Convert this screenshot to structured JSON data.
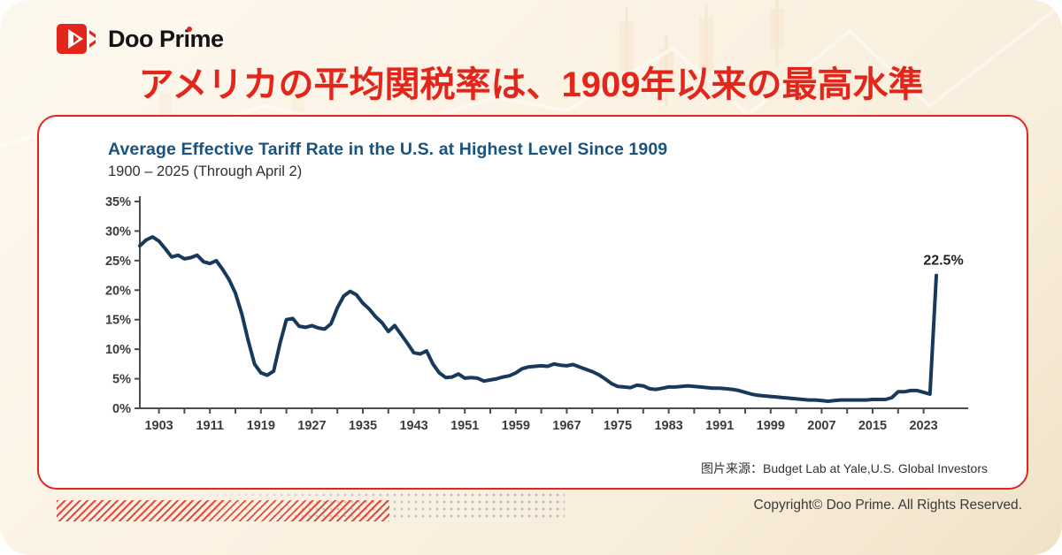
{
  "page": {
    "background": "#FBF2E3",
    "accent_red": "#E3261B",
    "navy_line": "#16395C",
    "title_blue": "#1A537D"
  },
  "logo": {
    "brand": "Doo Prime"
  },
  "headline": {
    "text": "アメリカの平均関税率は、1909年以来の最高水準"
  },
  "chart_card": {
    "title": "Average Effective Tariff Rate in the U.S. at Highest Level Since 1909",
    "subtitle": "1900 – 2025 (Through April 2)",
    "source": "图片来源：Budget Lab at Yale,U.S. Global Investors"
  },
  "footer": {
    "copyright": "Copyright© Doo Prime. All Rights Reserved."
  },
  "chart_data": {
    "type": "line",
    "title": "Average Effective Tariff Rate in the U.S. at Highest Level Since 1909",
    "subtitle": "1900 – 2025 (Through April 2)",
    "xlabel": "",
    "ylabel": "",
    "ylim": [
      0,
      35
    ],
    "grid": false,
    "legend": false,
    "line_color": "#16395C",
    "axis_color": "#4C4C4C",
    "year_start": 1900,
    "year_end": 2025,
    "yticks": [
      "0%",
      "5%",
      "10%",
      "15%",
      "20%",
      "25%",
      "30%",
      "35%"
    ],
    "xticks_labeled": [
      1903,
      1911,
      1919,
      1927,
      1935,
      1943,
      1951,
      1959,
      1967,
      1975,
      1983,
      1991,
      1999,
      2007,
      2015,
      2023
    ],
    "xtick_minor_step_years": 4,
    "annotation": {
      "year": 2025,
      "value": 22.5,
      "label": "22.5%"
    },
    "values": [
      27.5,
      28.5,
      29.0,
      28.3,
      27.0,
      25.6,
      25.9,
      25.3,
      25.5,
      25.9,
      24.8,
      24.5,
      25.0,
      23.5,
      21.8,
      19.5,
      16.0,
      11.5,
      7.5,
      6.0,
      5.6,
      6.3,
      11.0,
      15.0,
      15.2,
      13.9,
      13.7,
      14.0,
      13.6,
      13.4,
      14.3,
      17.0,
      19.0,
      19.8,
      19.2,
      17.8,
      16.8,
      15.5,
      14.5,
      13.0,
      14.0,
      12.5,
      11.0,
      9.4,
      9.2,
      9.7,
      7.5,
      6.0,
      5.2,
      5.3,
      5.8,
      5.1,
      5.2,
      5.1,
      4.6,
      4.8,
      5.0,
      5.3,
      5.5,
      6.0,
      6.7,
      7.0,
      7.1,
      7.2,
      7.1,
      7.5,
      7.3,
      7.2,
      7.4,
      7.0,
      6.6,
      6.2,
      5.7,
      5.0,
      4.2,
      3.7,
      3.6,
      3.5,
      3.9,
      3.8,
      3.3,
      3.2,
      3.4,
      3.6,
      3.6,
      3.7,
      3.8,
      3.7,
      3.6,
      3.5,
      3.4,
      3.4,
      3.3,
      3.2,
      3.0,
      2.7,
      2.4,
      2.2,
      2.1,
      2.0,
      1.9,
      1.8,
      1.7,
      1.6,
      1.5,
      1.4,
      1.4,
      1.3,
      1.2,
      1.3,
      1.4,
      1.4,
      1.4,
      1.4,
      1.4,
      1.5,
      1.5,
      1.5,
      1.8,
      2.8,
      2.8,
      3.0,
      3.0,
      2.7,
      2.4,
      22.5
    ]
  }
}
